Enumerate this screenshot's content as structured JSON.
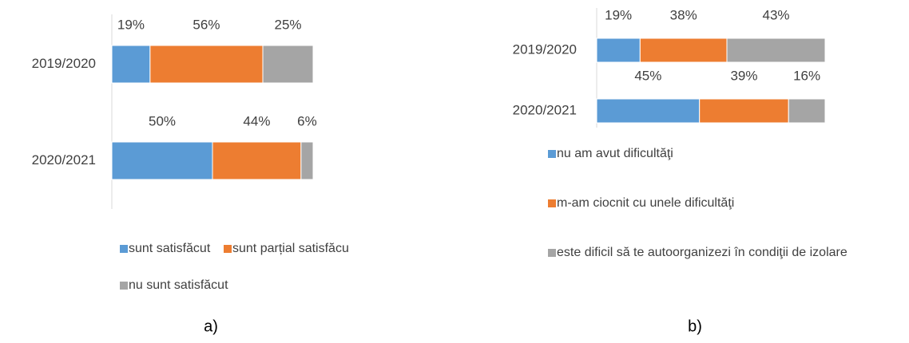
{
  "chart_data": [
    {
      "type": "bar",
      "orientation": "horizontal",
      "stacked": true,
      "caption": "a)",
      "categories": [
        "2019/2020",
        "2020/2021"
      ],
      "xlim": [
        0,
        100
      ],
      "legend": "bottom",
      "series": [
        {
          "name": "sunt satisfăcut",
          "color": "#5b9bd5",
          "values": [
            19,
            50
          ],
          "value_labels": [
            "19%",
            "50%"
          ]
        },
        {
          "name": "sunt parțial satisfăcu",
          "color": "#ed7d31",
          "values": [
            56,
            44
          ],
          "value_labels": [
            "56%",
            "44%"
          ]
        },
        {
          "name": "nu sunt satisfăcut",
          "color": "#a5a5a5",
          "values": [
            25,
            6
          ],
          "value_labels": [
            "25%",
            "6%"
          ]
        }
      ]
    },
    {
      "type": "bar",
      "orientation": "horizontal",
      "stacked": true,
      "caption": "b)",
      "categories": [
        "2019/2020",
        "2020/2021"
      ],
      "xlim": [
        0,
        100
      ],
      "legend": "bottom",
      "series": [
        {
          "name": "nu am avut dificultăţi",
          "color": "#5b9bd5",
          "values": [
            19,
            45
          ],
          "value_labels": [
            "19%",
            "45%"
          ]
        },
        {
          "name": "m-am ciocnit cu unele dificultăţi",
          "color": "#ed7d31",
          "values": [
            38,
            39
          ],
          "value_labels": [
            "38%",
            "39%"
          ]
        },
        {
          "name": "este dificil să te autoorganizezi în condiţii de izolare",
          "color": "#a5a5a5",
          "values": [
            43,
            16
          ],
          "value_labels": [
            "43%",
            "16%"
          ]
        }
      ]
    }
  ]
}
